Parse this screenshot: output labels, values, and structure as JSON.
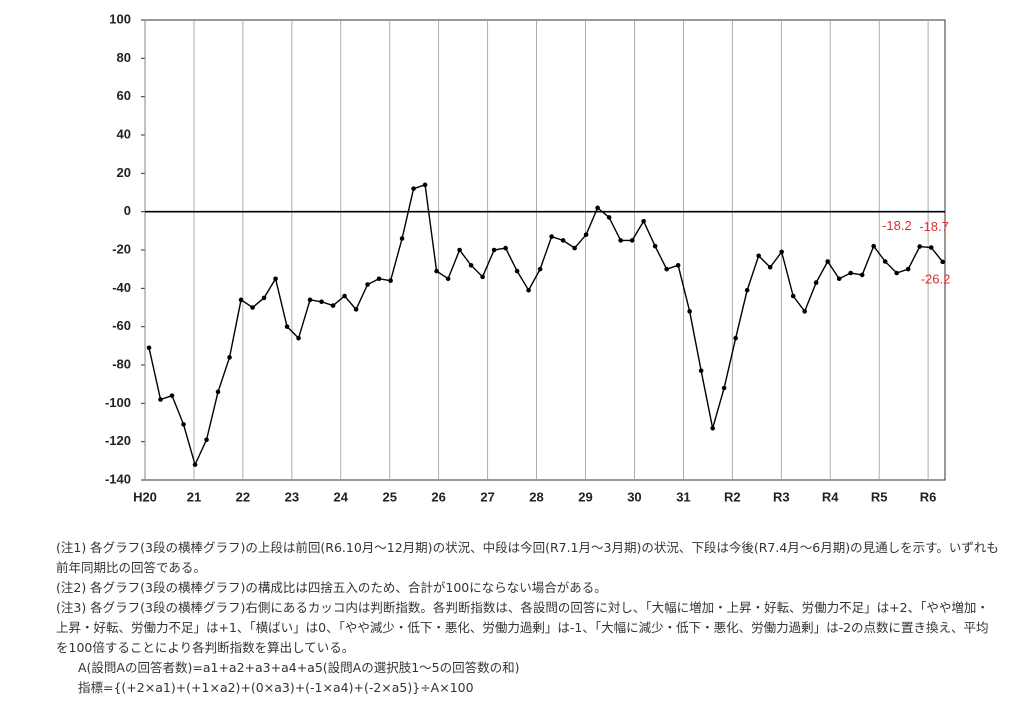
{
  "chart_data": {
    "type": "line",
    "x": [
      0,
      1,
      2,
      3,
      4,
      5,
      6,
      7,
      8,
      9,
      10,
      11,
      12,
      13,
      14,
      15,
      16,
      17,
      18,
      19,
      20,
      21,
      22,
      23,
      24,
      25,
      26,
      27,
      28,
      29,
      30,
      31,
      32,
      33,
      34,
      35,
      36,
      37,
      38,
      39,
      40,
      41,
      42,
      43,
      44,
      45,
      46,
      47,
      48,
      49,
      50,
      51,
      52,
      53,
      54,
      55,
      56,
      57,
      58,
      59,
      60,
      61,
      62,
      63,
      64,
      65,
      66,
      67,
      68,
      69
    ],
    "values": [
      -71,
      -98,
      -96,
      -111,
      -132,
      -119,
      -94,
      -76,
      -46,
      -50,
      -45,
      -35,
      -60,
      -66,
      -46,
      -47,
      -49,
      -44,
      -51,
      -38,
      -35,
      -36,
      -14,
      12,
      14,
      -31,
      -35,
      -20,
      -28,
      -34,
      -20,
      -19,
      -31,
      -41,
      -30,
      -13,
      -15,
      -19,
      -12,
      2,
      -3,
      -15,
      -15,
      -5,
      -18,
      -30,
      -28,
      -52,
      -83,
      -113,
      -92,
      -66,
      -41,
      -23,
      -29,
      -21,
      -44,
      -52,
      -37,
      -26,
      -35,
      -32,
      -33,
      -18,
      -26,
      -32,
      -30,
      -18.2,
      -18.7,
      -26.2
    ],
    "value_labels": [
      null,
      null,
      null,
      null,
      null,
      null,
      null,
      null,
      null,
      null,
      null,
      null,
      null,
      null,
      null,
      null,
      null,
      null,
      null,
      null,
      null,
      null,
      null,
      null,
      null,
      null,
      null,
      null,
      null,
      null,
      null,
      null,
      null,
      null,
      null,
      null,
      null,
      null,
      null,
      null,
      null,
      null,
      null,
      null,
      null,
      null,
      null,
      null,
      null,
      null,
      null,
      null,
      null,
      null,
      null,
      null,
      null,
      null,
      null,
      null,
      null,
      null,
      null,
      null,
      null,
      null,
      null,
      "-18.2",
      "-18.7",
      "-26.2"
    ],
    "color": "#000000",
    "label_color": "#e03030",
    "xlim": [
      -0.35,
      69.2
    ],
    "xticks": [
      {
        "value": -0.35,
        "label": "H20"
      },
      {
        "value": 3.91,
        "label": "21"
      },
      {
        "value": 8.16,
        "label": "22"
      },
      {
        "value": 12.42,
        "label": "23"
      },
      {
        "value": 16.67,
        "label": "24"
      },
      {
        "value": 20.93,
        "label": "25"
      },
      {
        "value": 25.18,
        "label": "26"
      },
      {
        "value": 29.44,
        "label": "27"
      },
      {
        "value": 33.69,
        "label": "28"
      },
      {
        "value": 37.95,
        "label": "29"
      },
      {
        "value": 42.2,
        "label": "30"
      },
      {
        "value": 46.46,
        "label": "31"
      },
      {
        "value": 50.71,
        "label": "R2"
      },
      {
        "value": 54.97,
        "label": "R3"
      },
      {
        "value": 59.22,
        "label": "R4"
      },
      {
        "value": 63.48,
        "label": "R5"
      },
      {
        "value": 67.73,
        "label": "R6"
      }
    ],
    "ylim": [
      -140,
      100
    ],
    "yticks": [
      100,
      80,
      60,
      40,
      20,
      0,
      -20,
      -40,
      -60,
      -80,
      -100,
      -120,
      -140
    ],
    "grid": "x"
  },
  "notes": [
    "(注1) 各グラフ(3段の横棒グラフ)の上段は前回(R6.10月〜12月期)の状況、中段は今回(R7.1月〜3月期)の状況、下段は今後(R7.4月〜6月期)の見通しを示す。いずれも前年同期比の回答である。",
    "(注2) 各グラフ(3段の横棒グラフ)の構成比は四捨五入のため、合計が100にならない場合がある。",
    "(注3) 各グラフ(3段の横棒グラフ)右側にあるカッコ内は判断指数。各判断指数は、各設問の回答に対し、「大幅に増加・上昇・好転、労働力不足」は+2、「やや増加・上昇・好転、労働力不足」は+1、「横ばい」は0、「やや減少・低下・悪化、労働力過剰」は-1、「大幅に減少・低下・悪化、労働力過剰」は-2の点数に置き換え、平均を100倍することにより各判断指数を算出している。",
    "A(設問Aの回答者数)=a1+a2+a3+a4+a5(設問Aの選択肢1〜5の回答数の和)",
    "指標={(+2×a1)+(+1×a2)+(0×a3)+(-1×a4)+(-2×a5)}÷A×100"
  ]
}
